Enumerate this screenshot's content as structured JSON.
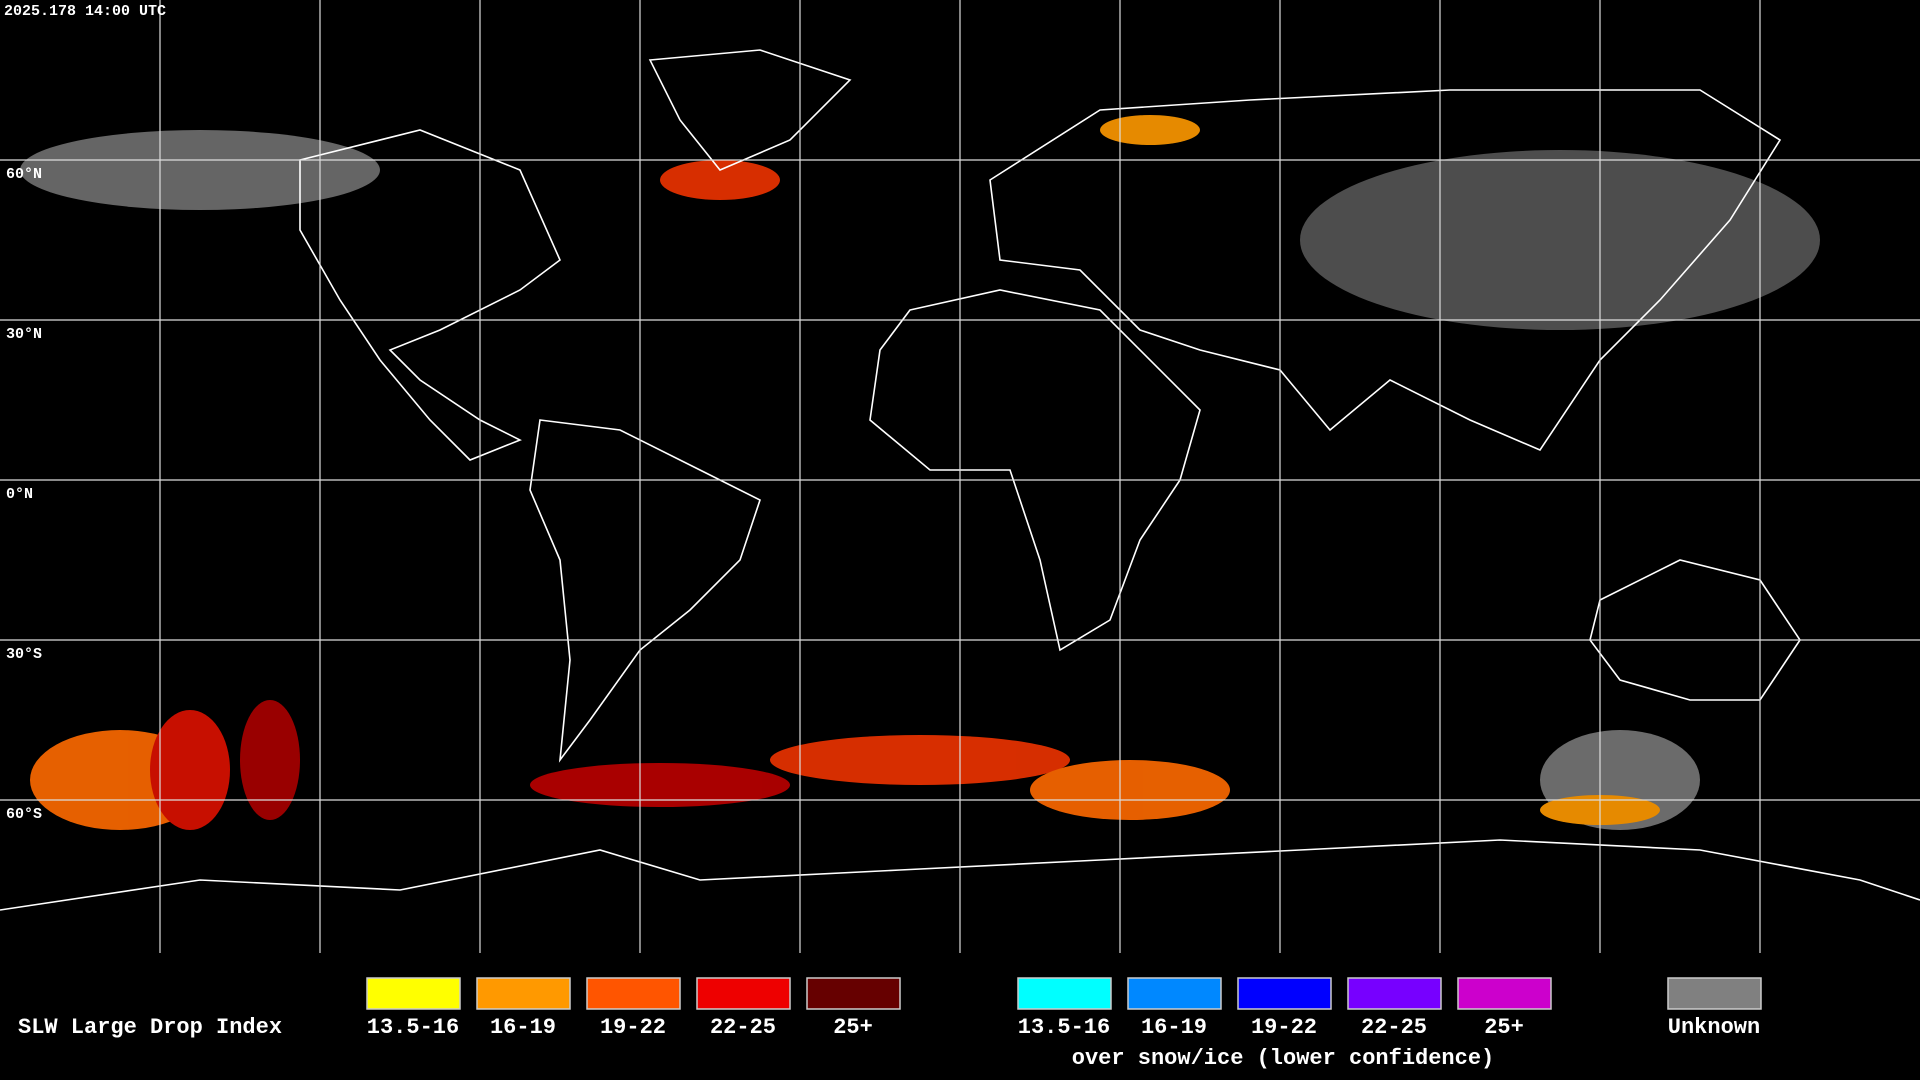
{
  "header": {
    "timestamp": "2025.178 14:00 UTC"
  },
  "grid": {
    "lat_labels": [
      "60°N",
      "30°N",
      "0°N",
      "30°S",
      "60°S"
    ]
  },
  "legend": {
    "title": "SLW Large Drop Index",
    "normal": [
      {
        "label": "13.5-16",
        "color": "#ffff00"
      },
      {
        "label": "16-19",
        "color": "#ff9900"
      },
      {
        "label": "19-22",
        "color": "#ff5500"
      },
      {
        "label": "22-25",
        "color": "#ee0000"
      },
      {
        "label": "25+",
        "color": "#660000"
      }
    ],
    "snow": [
      {
        "label": "13.5-16",
        "color": "#00ffff"
      },
      {
        "label": "16-19",
        "color": "#0088ff"
      },
      {
        "label": "19-22",
        "color": "#0000ff"
      },
      {
        "label": "22-25",
        "color": "#7700ff"
      },
      {
        "label": "25+",
        "color": "#cc00cc"
      }
    ],
    "snow_caption": "over snow/ice (lower confidence)",
    "unknown": {
      "label": "Unknown",
      "color": "#808080"
    }
  }
}
